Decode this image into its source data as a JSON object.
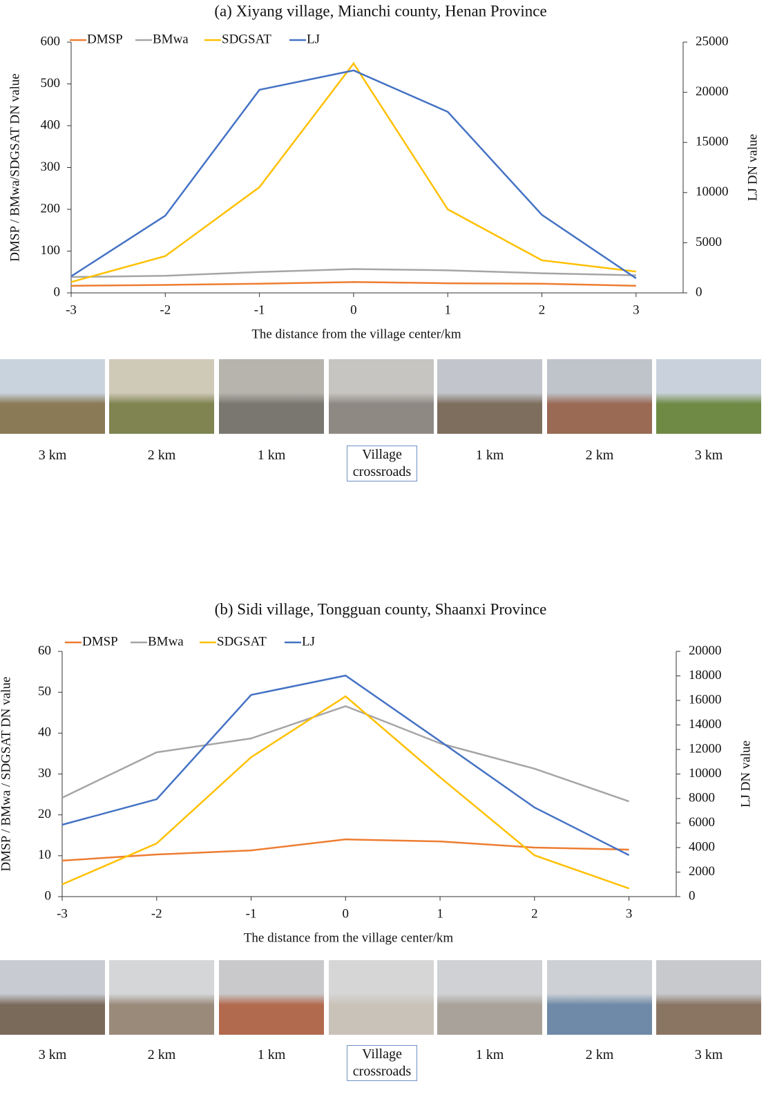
{
  "chart_data": [
    {
      "type": "line",
      "title": "(a) Xiyang village, Mianchi county, Henan Province",
      "x_label": "The distance from the village center/km",
      "y_label": "DMSP / BMwa/SDGSAT DN value",
      "y2_label": "LJ DN value",
      "x": [
        -3,
        -2,
        -1,
        0,
        1,
        2,
        3
      ],
      "xlim": [
        -3,
        3.5
      ],
      "xticks": [
        -3,
        -2,
        -1,
        0,
        1,
        2,
        3
      ],
      "ylim": [
        0,
        600
      ],
      "yticks": [
        0,
        100,
        200,
        300,
        400,
        500,
        600
      ],
      "y2lim": [
        0,
        25000
      ],
      "y2ticks": [
        0,
        5000,
        10000,
        15000,
        20000,
        25000
      ],
      "legend": "upper left",
      "series": [
        {
          "name": "DMSP",
          "color": "#ed7d31",
          "values": [
            17,
            19,
            22,
            26,
            23,
            22,
            17
          ]
        },
        {
          "name": "BMwa",
          "color": "#a5a5a5",
          "values": [
            38,
            41,
            50,
            57,
            54,
            47,
            42
          ]
        },
        {
          "name": "SDGSAT",
          "color": "#ffc000",
          "values": [
            26,
            88,
            253,
            549,
            200,
            78,
            51
          ]
        },
        {
          "name": "LJ",
          "color": "#4472c4",
          "axis": "y2",
          "values": [
            1650,
            7700,
            20250,
            22180,
            18050,
            7780,
            1450
          ]
        }
      ],
      "photo_captions": [
        "3 km",
        "2 km",
        "1 km",
        "Village crossroads",
        "1 km",
        "2 km",
        "3 km"
      ]
    },
    {
      "type": "line",
      "title": "(b) Sidi village, Tongguan county, Shaanxi Province",
      "x_label": "The distance from the village center/km",
      "y_label": "DMSP / BMwa / SDGSAT DN value",
      "y2_label": "LJ DN value",
      "x": [
        -3,
        -2,
        -1,
        0,
        1,
        2,
        3
      ],
      "xlim": [
        -3,
        3.5
      ],
      "xticks": [
        -3,
        -2,
        -1,
        0,
        1,
        2,
        3
      ],
      "ylim": [
        0,
        60
      ],
      "yticks": [
        0,
        10,
        20,
        30,
        40,
        50,
        60
      ],
      "y2lim": [
        0,
        20000
      ],
      "y2ticks": [
        0,
        2000,
        4000,
        6000,
        8000,
        10000,
        12000,
        14000,
        16000,
        18000,
        20000
      ],
      "legend": "upper left",
      "series": [
        {
          "name": "DMSP",
          "color": "#ed7d31",
          "values": [
            8.8,
            10.3,
            11.3,
            14.0,
            13.5,
            12.0,
            11.5
          ]
        },
        {
          "name": "BMwa",
          "color": "#a5a5a5",
          "values": [
            24.2,
            35.3,
            38.7,
            46.6,
            37.5,
            31.3,
            23.3
          ]
        },
        {
          "name": "SDGSAT",
          "color": "#ffc000",
          "values": [
            3.0,
            13.0,
            34.1,
            49.0,
            29.2,
            10.1,
            2.0
          ]
        },
        {
          "name": "LJ",
          "color": "#4472c4",
          "axis": "y2",
          "values": [
            5860,
            7940,
            16450,
            18030,
            12680,
            7270,
            3380
          ]
        }
      ],
      "photo_captions": [
        "3 km",
        "2 km",
        "1 km",
        "Village crossroads",
        "1 km",
        "2 km",
        "3 km"
      ]
    }
  ]
}
